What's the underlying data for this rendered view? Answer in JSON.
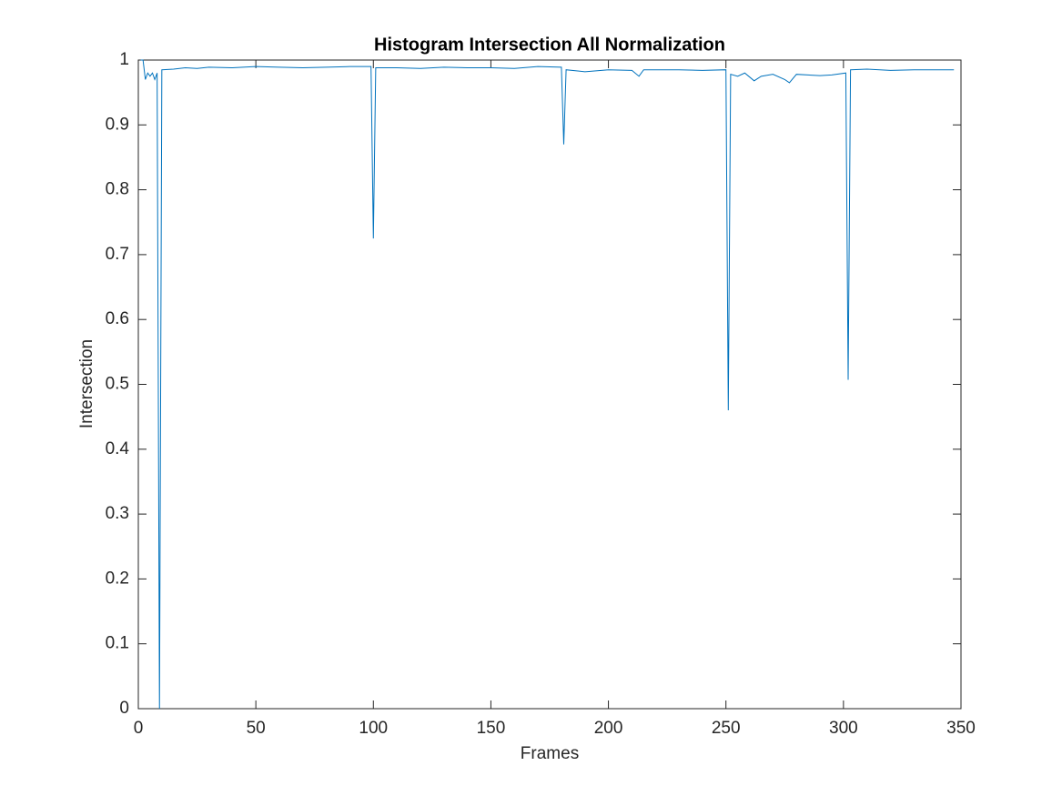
{
  "chart_data": {
    "type": "line",
    "title": "Histogram Intersection All Normalization",
    "x_label": "Frames",
    "y_label": "Intersection",
    "xlim": [
      0,
      350
    ],
    "xticks": [
      0,
      50,
      100,
      150,
      200,
      250,
      300,
      350
    ],
    "ylim": [
      0,
      1
    ],
    "yticks": [
      0,
      0.1,
      0.2,
      0.3,
      0.4,
      0.5,
      0.6,
      0.7,
      0.8,
      0.9,
      1
    ],
    "grid": false,
    "box": true,
    "series": [
      {
        "color": "#0072bd",
        "x": [
          1,
          2,
          3,
          4,
          5,
          6,
          7,
          8,
          9,
          10,
          15,
          20,
          25,
          30,
          40,
          50,
          60,
          70,
          80,
          90,
          99,
          100,
          101,
          110,
          120,
          130,
          140,
          150,
          160,
          170,
          180,
          181,
          182,
          190,
          200,
          210,
          213,
          215,
          230,
          240,
          250,
          251,
          252,
          255,
          258,
          262,
          265,
          270,
          275,
          277,
          280,
          290,
          295,
          301,
          302,
          303,
          310,
          320,
          330,
          340,
          347
        ],
        "values": [
          1.0,
          1.0,
          0.97,
          0.98,
          0.975,
          0.98,
          0.97,
          0.98,
          0.0,
          0.985,
          0.986,
          0.988,
          0.987,
          0.989,
          0.988,
          0.99,
          0.989,
          0.988,
          0.989,
          0.99,
          0.99,
          0.725,
          0.988,
          0.988,
          0.987,
          0.989,
          0.988,
          0.988,
          0.987,
          0.99,
          0.989,
          0.87,
          0.985,
          0.982,
          0.985,
          0.984,
          0.975,
          0.985,
          0.985,
          0.984,
          0.985,
          0.46,
          0.978,
          0.975,
          0.98,
          0.968,
          0.975,
          0.978,
          0.97,
          0.965,
          0.978,
          0.976,
          0.977,
          0.98,
          0.507,
          0.985,
          0.986,
          0.984,
          0.985,
          0.985,
          0.985
        ]
      }
    ]
  }
}
